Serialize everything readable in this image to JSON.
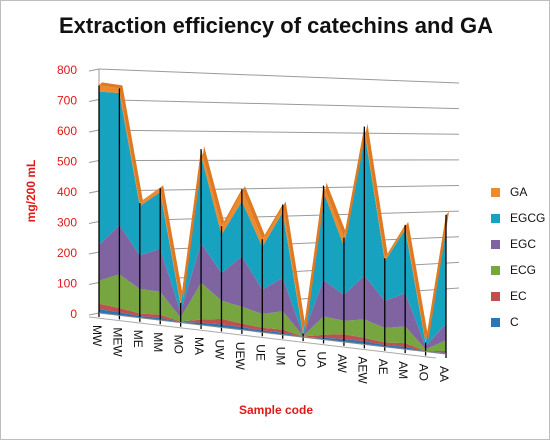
{
  "chart_data": {
    "type": "area",
    "title": "Extraction efficiency of catechins and GA",
    "xlabel": "Sample code",
    "ylabel": "mg/200 mL",
    "ylim": [
      0,
      800
    ],
    "yticks": [
      "0",
      "100",
      "200",
      "300",
      "400",
      "500",
      "600",
      "700",
      "800"
    ],
    "grid": true,
    "stacked": true,
    "legend_position": "right",
    "categories": [
      "MW",
      "MEW",
      "ME",
      "MM",
      "MO",
      "MA",
      "UW",
      "UEW",
      "UE",
      "UM",
      "UO",
      "UA",
      "AW",
      "AEW",
      "AE",
      "AM",
      "AO",
      "AA"
    ],
    "series": [
      {
        "name": "C",
        "color": "#2e75b6",
        "values": [
          12,
          10,
          6,
          8,
          2,
          8,
          10,
          9,
          7,
          7,
          1,
          6,
          10,
          10,
          6,
          8,
          1,
          4
        ]
      },
      {
        "name": "EC",
        "color": "#c0504d",
        "values": [
          18,
          14,
          8,
          10,
          2,
          10,
          18,
          12,
          8,
          10,
          1,
          10,
          15,
          12,
          8,
          12,
          1,
          6
        ]
      },
      {
        "name": "ECG",
        "color": "#77a540",
        "values": [
          75,
          110,
          80,
          75,
          12,
          120,
          60,
          55,
          45,
          60,
          2,
          60,
          45,
          60,
          48,
          55,
          6,
          35
        ]
      },
      {
        "name": "EGC",
        "color": "#8064a2",
        "values": [
          115,
          160,
          110,
          140,
          18,
          130,
          90,
          165,
          80,
          110,
          3,
          120,
          85,
          145,
          90,
          110,
          10,
          55
        ]
      },
      {
        "name": "EGCG",
        "color": "#17a2c0",
        "values": [
          500,
          430,
          160,
          185,
          25,
          285,
          125,
          180,
          140,
          215,
          3,
          290,
          160,
          475,
          130,
          210,
          10,
          350
        ]
      },
      {
        "name": "GA",
        "color": "#ed8a2e",
        "values": [
          20,
          15,
          10,
          12,
          5,
          22,
          28,
          40,
          25,
          25,
          2,
          20,
          28,
          15,
          10,
          15,
          2,
          10
        ]
      }
    ]
  }
}
